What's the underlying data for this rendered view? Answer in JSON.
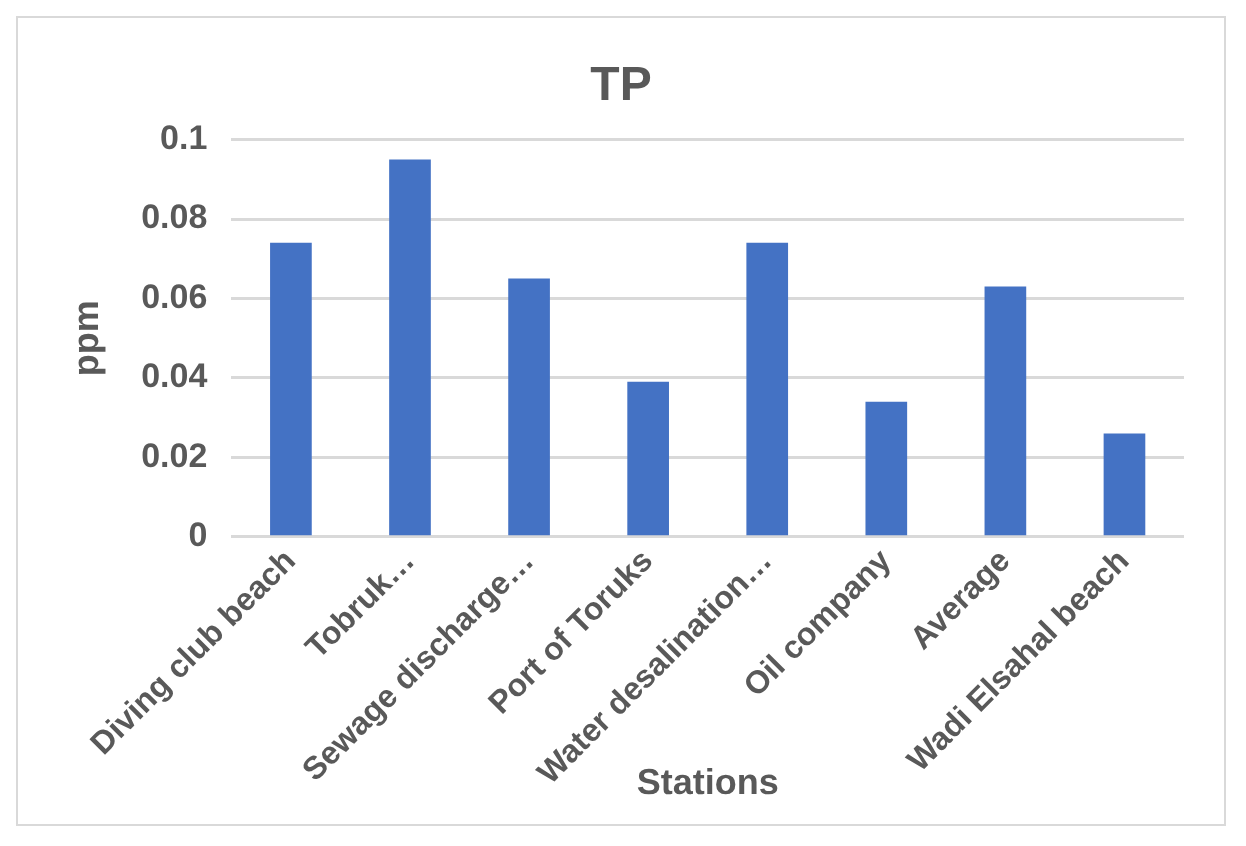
{
  "chart_data": {
    "type": "bar",
    "title": "TP",
    "xlabel": "Stations",
    "ylabel": "ppm",
    "categories": [
      "Diving club beach",
      "Tobruk…",
      "Sewage discharge…",
      "Port of Toruks",
      "Water desalination…",
      "Oil company",
      "Average",
      "Wadi Elsahal beach"
    ],
    "values": [
      0.074,
      0.095,
      0.065,
      0.039,
      0.074,
      0.034,
      0.063,
      0.026
    ],
    "color": "#4472c4",
    "ylim": [
      0,
      0.1
    ],
    "yticks": [
      0,
      0.02,
      0.04,
      0.06,
      0.08,
      0.1
    ],
    "grid": "y",
    "legend": false
  }
}
